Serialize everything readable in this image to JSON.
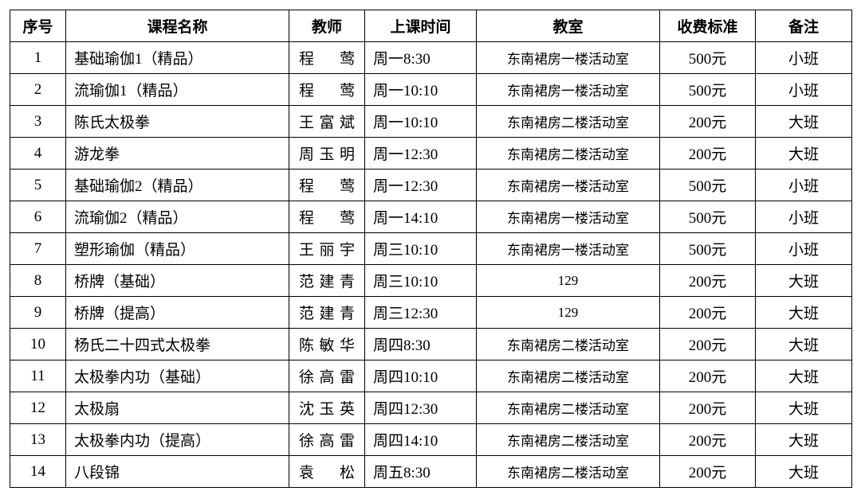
{
  "table": {
    "columns": [
      "序号",
      "课程名称",
      "教师",
      "上课时间",
      "教室",
      "收费标准",
      "备注"
    ],
    "rows": [
      {
        "idx": "1",
        "name": "基础瑜伽1（精品）",
        "teacher": "程　莺",
        "time": "周一8:30",
        "room": "东南裙房一楼活动室",
        "fee": "500元",
        "note": "小班"
      },
      {
        "idx": "2",
        "name": "流瑜伽1（精品）",
        "teacher": "程　莺",
        "time": "周一10:10",
        "room": "东南裙房一楼活动室",
        "fee": "500元",
        "note": "小班"
      },
      {
        "idx": "3",
        "name": "陈氏太极拳",
        "teacher": "王富斌",
        "time": "周一10:10",
        "room": "东南裙房二楼活动室",
        "fee": "200元",
        "note": "大班"
      },
      {
        "idx": "4",
        "name": "游龙拳",
        "teacher": "周玉明",
        "time": "周一12:30",
        "room": "东南裙房二楼活动室",
        "fee": "200元",
        "note": "大班"
      },
      {
        "idx": "5",
        "name": "基础瑜伽2（精品）",
        "teacher": "程　莺",
        "time": "周一12:30",
        "room": "东南裙房一楼活动室",
        "fee": "500元",
        "note": "小班"
      },
      {
        "idx": "6",
        "name": "流瑜伽2（精品）",
        "teacher": "程　莺",
        "time": "周一14:10",
        "room": "东南裙房一楼活动室",
        "fee": "500元",
        "note": "小班"
      },
      {
        "idx": "7",
        "name": "塑形瑜伽（精品）",
        "teacher": "王丽宇",
        "time": "周三10:10",
        "room": "东南裙房一楼活动室",
        "fee": "500元",
        "note": "小班"
      },
      {
        "idx": "8",
        "name": "桥牌（基础）",
        "teacher": "范建青",
        "time": "周三10:10",
        "room": "129",
        "fee": "200元",
        "note": "大班"
      },
      {
        "idx": "9",
        "name": "桥牌（提高）",
        "teacher": "范建青",
        "time": "周三12:30",
        "room": "129",
        "fee": "200元",
        "note": "大班"
      },
      {
        "idx": "10",
        "name": "杨氏二十四式太极拳",
        "teacher": "陈敏华",
        "time": "周四8:30",
        "room": "东南裙房二楼活动室",
        "fee": "200元",
        "note": "大班"
      },
      {
        "idx": "11",
        "name": "太极拳内功（基础）",
        "teacher": "徐高雷",
        "time": "周四10:10",
        "room": "东南裙房二楼活动室",
        "fee": "200元",
        "note": "大班"
      },
      {
        "idx": "12",
        "name": "太极扇",
        "teacher": "沈玉英",
        "time": "周四12:30",
        "room": "东南裙房二楼活动室",
        "fee": "200元",
        "note": "大班"
      },
      {
        "idx": "13",
        "name": "太极拳内功（提高）",
        "teacher": "徐高雷",
        "time": "周四14:10",
        "room": "东南裙房二楼活动室",
        "fee": "200元",
        "note": "大班"
      },
      {
        "idx": "14",
        "name": "八段锦",
        "teacher": "袁　松",
        "time": "周五8:30",
        "room": "东南裙房二楼活动室",
        "fee": "200元",
        "note": "大班"
      }
    ]
  }
}
